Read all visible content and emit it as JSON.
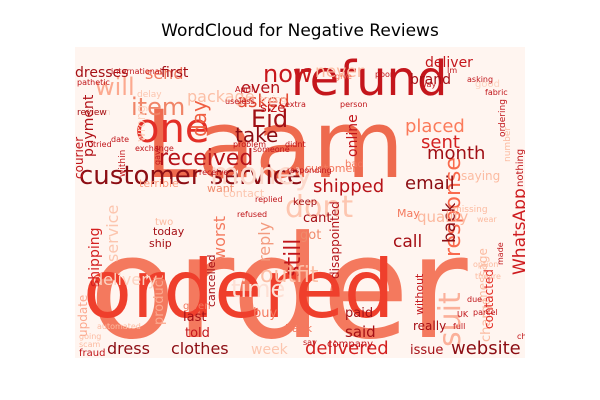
{
  "chart_data": {
    "type": "wordcloud",
    "title": "WordCloud for Negative Reviews",
    "background": "#fff5f0",
    "palette": "Reds",
    "words": [
      {
        "text": "order",
        "weight": 1.0,
        "color": "#f4795e"
      },
      {
        "text": "Laam",
        "weight": 0.88,
        "color": "#ee6a4e"
      },
      {
        "text": "ordered",
        "weight": 0.7,
        "color": "#ef3f2c"
      },
      {
        "text": "refund",
        "weight": 0.6,
        "color": "#c4161c"
      },
      {
        "text": "one",
        "weight": 0.45,
        "color": "#e32f27"
      },
      {
        "text": "customer service",
        "weight": 0.33,
        "color": "#8c0d13"
      },
      {
        "text": "money",
        "weight": 0.3,
        "color": "#fcd9cc"
      },
      {
        "text": "dont",
        "weight": 0.3,
        "color": "#fdc6b0"
      },
      {
        "text": "suit",
        "weight": 0.28,
        "color": "#fbb09a"
      },
      {
        "text": "now",
        "weight": 0.24,
        "color": "#c8171c"
      },
      {
        "text": "will",
        "weight": 0.24,
        "color": "#fca98f"
      },
      {
        "text": "time",
        "weight": 0.24,
        "color": "#fde0d5"
      },
      {
        "text": "item",
        "weight": 0.2,
        "color": "#f08467"
      },
      {
        "text": "Eid",
        "weight": 0.2,
        "color": "#a00f15"
      },
      {
        "text": "received",
        "weight": 0.2,
        "color": "#b71319"
      },
      {
        "text": "still",
        "weight": 0.2,
        "color": "#c0151a"
      },
      {
        "text": "response",
        "weight": 0.2,
        "color": "#f96a4d"
      },
      {
        "text": "outfit",
        "weight": 0.2,
        "color": "#fcbfa6"
      },
      {
        "text": "day",
        "weight": 0.18,
        "color": "#f06043"
      },
      {
        "text": "take",
        "weight": 0.17,
        "color": "#8c0d13"
      },
      {
        "text": "asked",
        "weight": 0.17,
        "color": "#e34a33"
      },
      {
        "text": "delivered",
        "weight": 0.17,
        "color": "#d32020"
      },
      {
        "text": "shipped",
        "weight": 0.16,
        "color": "#b71319"
      },
      {
        "text": "email",
        "weight": 0.16,
        "color": "#8c0d13"
      },
      {
        "text": "website",
        "weight": 0.16,
        "color": "#8c0d13"
      },
      {
        "text": "placed",
        "weight": 0.15,
        "color": "#fb7a5a"
      },
      {
        "text": "month",
        "weight": 0.15,
        "color": "#a00f15"
      },
      {
        "text": "sent",
        "weight": 0.15,
        "color": "#d42121"
      },
      {
        "text": "never",
        "weight": 0.15,
        "color": "#fcbba1"
      },
      {
        "text": "back",
        "weight": 0.14,
        "color": "#8c0d13"
      },
      {
        "text": "call",
        "weight": 0.14,
        "color": "#a50f15"
      },
      {
        "text": "WhatsApp",
        "weight": 0.14,
        "color": "#ce1a1e"
      },
      {
        "text": "dress",
        "weight": 0.14,
        "color": "#8c0d13"
      },
      {
        "text": "clothes",
        "weight": 0.14,
        "color": "#8c0d13"
      },
      {
        "text": "even",
        "weight": 0.13,
        "color": "#b21218"
      },
      {
        "text": "send",
        "weight": 0.13,
        "color": "#f4795e"
      },
      {
        "text": "package",
        "weight": 0.13,
        "color": "#fcbfa6"
      },
      {
        "text": "service",
        "weight": 0.13,
        "color": "#fcc5ae"
      },
      {
        "text": "delivery",
        "weight": 0.13,
        "color": "#fcd3c1"
      },
      {
        "text": "reply",
        "weight": 0.13,
        "color": "#f39b7f"
      },
      {
        "text": "worst",
        "weight": 0.12,
        "color": "#f4795e"
      },
      {
        "text": "said",
        "weight": 0.12,
        "color": "#a50f15"
      },
      {
        "text": "quality",
        "weight": 0.12,
        "color": "#fcb89e"
      },
      {
        "text": "shipping",
        "weight": 0.12,
        "color": "#d42121"
      },
      {
        "text": "payment",
        "weight": 0.11,
        "color": "#b11218"
      },
      {
        "text": "week",
        "weight": 0.11,
        "color": "#fcc5ae"
      },
      {
        "text": "deliver",
        "weight": 0.1,
        "color": "#c4161c"
      },
      {
        "text": "dresses",
        "weight": 0.1,
        "color": "#a50f15"
      },
      {
        "text": "first",
        "weight": 0.1,
        "color": "#a50f15"
      },
      {
        "text": "online",
        "weight": 0.1,
        "color": "#c2161b"
      },
      {
        "text": "brand",
        "weight": 0.09,
        "color": "#a50f15"
      },
      {
        "text": "size",
        "weight": 0.09,
        "color": "#c2161b"
      },
      {
        "text": "told",
        "weight": 0.09,
        "color": "#c4161c"
      },
      {
        "text": "paid",
        "weight": 0.09,
        "color": "#a50f15"
      },
      {
        "text": "issue",
        "weight": 0.09,
        "color": "#a50f15"
      },
      {
        "text": "cant",
        "weight": 0.09,
        "color": "#a50f15"
      },
      {
        "text": "got",
        "weight": 0.09,
        "color": "#f08a6b"
      },
      {
        "text": "buy",
        "weight": 0.09,
        "color": "#f4795e"
      },
      {
        "text": "last",
        "weight": 0.09,
        "color": "#a50f15"
      },
      {
        "text": "product",
        "weight": 0.09,
        "color": "#fca98f"
      },
      {
        "text": "charge",
        "weight": 0.09,
        "color": "#fcbba1"
      },
      {
        "text": "disappointed",
        "weight": 0.08,
        "color": "#b21218"
      },
      {
        "text": "message",
        "weight": 0.08,
        "color": "#fcbba1"
      },
      {
        "text": "saying",
        "weight": 0.08,
        "color": "#fcbba1"
      },
      {
        "text": "courier",
        "weight": 0.08,
        "color": "#c0151a"
      },
      {
        "text": "update",
        "weight": 0.08,
        "color": "#fca98f"
      },
      {
        "text": "wrong",
        "weight": 0.08,
        "color": "#fdd2bf"
      },
      {
        "text": "contacted",
        "weight": 0.08,
        "color": "#e32f27"
      },
      {
        "text": "really",
        "weight": 0.08,
        "color": "#a50f15"
      },
      {
        "text": "cancelled",
        "weight": 0.07,
        "color": "#a50f15"
      },
      {
        "text": "terrible",
        "weight": 0.07,
        "color": "#fc9c7d"
      },
      {
        "text": "want",
        "weight": 0.07,
        "color": "#f08a6b"
      },
      {
        "text": "today",
        "weight": 0.07,
        "color": "#a50f15"
      },
      {
        "text": "ship",
        "weight": 0.07,
        "color": "#a50f15"
      },
      {
        "text": "May",
        "weight": 0.07,
        "color": "#f4795e"
      },
      {
        "text": "without",
        "weight": 0.06,
        "color": "#c2161b"
      },
      {
        "text": "contact",
        "weight": 0.06,
        "color": "#fcc5ae"
      },
      {
        "text": "customer",
        "weight": 0.06,
        "color": "#f4795e"
      },
      {
        "text": "bad",
        "weight": 0.06,
        "color": "#f4795e"
      },
      {
        "text": "bank",
        "weight": 0.06,
        "color": "#f4795e"
      },
      {
        "text": "two",
        "weight": 0.06,
        "color": "#fcbba1"
      },
      {
        "text": "fraud",
        "weight": 0.05,
        "color": "#c0151a"
      },
      {
        "text": "company",
        "weight": 0.05,
        "color": "#c0151a"
      },
      {
        "text": "nothing",
        "weight": 0.05,
        "color": "#c0151a"
      },
      {
        "text": "keep",
        "weight": 0.05,
        "color": "#a50f15"
      },
      {
        "text": "given",
        "weight": 0.05,
        "color": "#f4795e"
      },
      {
        "text": "trying",
        "weight": 0.05,
        "color": "#fcd3c1"
      },
      {
        "text": "good",
        "weight": 0.05,
        "color": "#fdd2bf"
      },
      {
        "text": "number",
        "weight": 0.05,
        "color": "#fcbba1"
      },
      {
        "text": "missing",
        "weight": 0.05,
        "color": "#fcbba1"
      },
      {
        "text": "ordering",
        "weight": 0.05,
        "color": "#c0151a"
      },
      {
        "text": "delay",
        "weight": 0.05,
        "color": "#fcc5ae"
      },
      {
        "text": "return",
        "weight": 0.05,
        "color": "#fcd9cc"
      },
      {
        "text": "within",
        "weight": 0.05,
        "color": "#c0151a"
      },
      {
        "text": "didnt",
        "weight": 0.05,
        "color": "#c0151a"
      },
      {
        "text": "refused",
        "weight": 0.04,
        "color": "#c0151a"
      },
      {
        "text": "give",
        "weight": 0.04,
        "color": "#f4795e"
      },
      {
        "text": "pathetic",
        "weight": 0.04,
        "color": "#c0151a"
      },
      {
        "text": "international",
        "weight": 0.04,
        "color": "#c0151a"
      },
      {
        "text": "review",
        "weight": 0.04,
        "color": "#a50f15"
      },
      {
        "text": "tried",
        "weight": 0.04,
        "color": "#c0151a"
      },
      {
        "text": "date",
        "weight": 0.04,
        "color": "#c0151a"
      },
      {
        "text": "someone",
        "weight": 0.04,
        "color": "#c0151a"
      },
      {
        "text": "problem",
        "weight": 0.04,
        "color": "#c0151a"
      },
      {
        "text": "exchange",
        "weight": 0.04,
        "color": "#c0151a"
      },
      {
        "text": "receive",
        "weight": 0.04,
        "color": "#c0151a"
      },
      {
        "text": "wear",
        "weight": 0.04,
        "color": "#fcbba1"
      },
      {
        "text": "parcel",
        "weight": 0.04,
        "color": "#c0151a"
      },
      {
        "text": "full",
        "weight": 0.04,
        "color": "#c0151a"
      },
      {
        "text": "chat",
        "weight": 0.04,
        "color": "#c0151a"
      },
      {
        "text": "UK",
        "weight": 0.04,
        "color": "#c0151a"
      },
      {
        "text": "scam",
        "weight": 0.04,
        "color": "#fcbba1"
      },
      {
        "text": "going",
        "weight": 0.04,
        "color": "#fcbba1"
      },
      {
        "text": "automated",
        "weight": 0.04,
        "color": "#fcbba1"
      },
      {
        "text": "replied",
        "weight": 0.04,
        "color": "#c0151a"
      },
      {
        "text": "option",
        "weight": 0.04,
        "color": "#fcbba1"
      },
      {
        "text": "theyre",
        "weight": 0.04,
        "color": "#fcbba1"
      },
      {
        "text": "Im",
        "weight": 0.04,
        "color": "#c0151a"
      },
      {
        "text": "way",
        "weight": 0.04,
        "color": "#c0151a"
      },
      {
        "text": "poor",
        "weight": 0.04,
        "color": "#c0151a"
      },
      {
        "text": "person",
        "weight": 0.04,
        "color": "#c0151a"
      },
      {
        "text": "asking",
        "weight": 0.04,
        "color": "#c0151a"
      },
      {
        "text": "fabric",
        "weight": 0.04,
        "color": "#c0151a"
      },
      {
        "text": "useless",
        "weight": 0.04,
        "color": "#c0151a"
      },
      {
        "text": "April",
        "weight": 0.04,
        "color": "#c0151a"
      },
      {
        "text": "say",
        "weight": 0.04,
        "color": "#c0151a"
      },
      {
        "text": "due",
        "weight": 0.04,
        "color": "#c0151a"
      },
      {
        "text": "gave",
        "weight": 0.04,
        "color": "#c0151a"
      },
      {
        "text": "responding",
        "weight": 0.04,
        "color": "#c0151a"
      },
      {
        "text": "extra",
        "weight": 0.03,
        "color": "#c0151a"
      },
      {
        "text": "made",
        "weight": 0.03,
        "color": "#c0151a"
      },
      {
        "text": "disappointing",
        "weight": 0.03,
        "color": "#c0151a"
      }
    ]
  }
}
